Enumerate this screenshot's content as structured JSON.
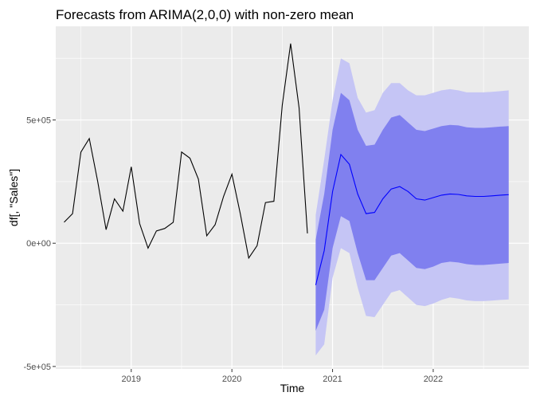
{
  "chart_data": {
    "type": "line",
    "title": "Forecasts from ARIMA(2,0,0) with non-zero mean",
    "xlabel": "Time",
    "ylabel": "df[, \"Sales\"]",
    "grid": true,
    "xlim": [
      2018.25,
      2022.95
    ],
    "ylim": [
      -510000,
      880000
    ],
    "x_ticks": [
      {
        "value": 2019,
        "label": "2019"
      },
      {
        "value": 2020,
        "label": "2020"
      },
      {
        "value": 2021,
        "label": "2021"
      },
      {
        "value": 2022,
        "label": "2022"
      }
    ],
    "y_ticks": [
      {
        "value": -500000,
        "label": "-5e+05"
      },
      {
        "value": 0,
        "label": "0e+00"
      },
      {
        "value": 500000,
        "label": "5e+05"
      }
    ],
    "colors": {
      "panel": "#ebebeb",
      "grid": "#ffffff",
      "history_line": "#000000",
      "forecast_line": "#0000ff",
      "band_95": "#c5c5f5",
      "band_80": "#8080ef"
    },
    "series": [
      {
        "x": [
          2018.333,
          2018.417,
          2018.5,
          2018.583,
          2018.667,
          2018.75,
          2018.833,
          2018.917,
          2019.0,
          2019.083,
          2019.167,
          2019.25,
          2019.333,
          2019.417,
          2019.5,
          2019.583,
          2019.667,
          2019.75,
          2019.833,
          2019.917,
          2020.0,
          2020.083,
          2020.167,
          2020.25,
          2020.333,
          2020.417,
          2020.5,
          2020.583,
          2020.667,
          2020.75
        ],
        "values": [
          85000,
          120000,
          370000,
          425000,
          250000,
          55000,
          180000,
          130000,
          310000,
          80000,
          -20000,
          50000,
          60000,
          85000,
          370000,
          345000,
          260000,
          30000,
          75000,
          190000,
          280000,
          120000,
          -60000,
          -10000,
          165000,
          170000,
          560000,
          810000,
          550000,
          40000
        ]
      },
      {
        "x": [
          2020.833,
          2020.917,
          2021.0,
          2021.083,
          2021.167,
          2021.25,
          2021.333,
          2021.417,
          2021.5,
          2021.583,
          2021.667,
          2021.75,
          2021.833,
          2021.917,
          2022.0,
          2022.083,
          2022.167,
          2022.25,
          2022.333,
          2022.417,
          2022.5,
          2022.583,
          2022.667,
          2022.75
        ],
        "values": [
          -170000,
          -30000,
          210000,
          360000,
          320000,
          200000,
          120000,
          125000,
          180000,
          220000,
          230000,
          210000,
          180000,
          175000,
          185000,
          195000,
          200000,
          198000,
          192000,
          190000,
          190000,
          192000,
          195000,
          197000
        ],
        "lo80": [
          -355000,
          -270000,
          -20000,
          110000,
          90000,
          -40000,
          -150000,
          -150000,
          -100000,
          -50000,
          -40000,
          -70000,
          -100000,
          -105000,
          -95000,
          -80000,
          -75000,
          -78000,
          -85000,
          -88000,
          -88000,
          -86000,
          -83000,
          -80000
        ],
        "hi80": [
          15000,
          200000,
          460000,
          610000,
          580000,
          460000,
          395000,
          400000,
          460000,
          510000,
          520000,
          490000,
          460000,
          455000,
          465000,
          475000,
          480000,
          478000,
          470000,
          468000,
          468000,
          470000,
          473000,
          475000
        ],
        "lo95": [
          -455000,
          -410000,
          -140000,
          -20000,
          -40000,
          -180000,
          -295000,
          -300000,
          -250000,
          -200000,
          -190000,
          -220000,
          -250000,
          -255000,
          -245000,
          -230000,
          -220000,
          -225000,
          -232000,
          -235000,
          -235000,
          -233000,
          -230000,
          -228000
        ],
        "hi95": [
          115000,
          340000,
          580000,
          750000,
          730000,
          590000,
          530000,
          540000,
          610000,
          650000,
          650000,
          620000,
          600000,
          600000,
          610000,
          620000,
          625000,
          620000,
          612000,
          612000,
          612000,
          614000,
          617000,
          620000
        ]
      }
    ]
  }
}
